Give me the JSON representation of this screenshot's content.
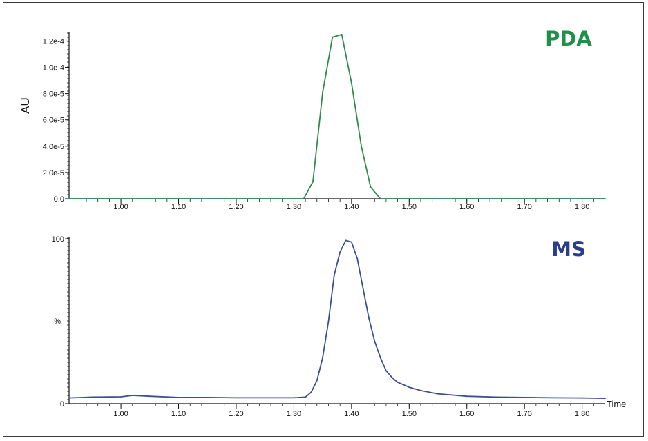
{
  "chart_data": [
    {
      "type": "line",
      "panel_label": "PDA",
      "ylabel": "AU",
      "xlabel": "",
      "color": "#2e8b4e",
      "label_color": "#1f8f4a",
      "xlim": [
        0.91,
        1.84
      ],
      "ylim": [
        0,
        0.000126
      ],
      "x_ticks": [
        1.0,
        1.1,
        1.2,
        1.3,
        1.4,
        1.5,
        1.6,
        1.7,
        1.8
      ],
      "x_tick_labels": [
        "1.00",
        "1.10",
        "1.20",
        "1.30",
        "1.40",
        "1.50",
        "1.60",
        "1.70",
        "1.80"
      ],
      "y_ticks": [
        0,
        2e-05,
        4e-05,
        6e-05,
        8e-05,
        0.0001,
        0.00012
      ],
      "y_tick_labels": [
        "0.0",
        "2.0e-5",
        "4.0e-5",
        "6.0e-5",
        "8.0e-5",
        "1.0e-4",
        "1.2e-4"
      ],
      "series": [
        {
          "x": [
            0.91,
            1.317,
            1.333,
            1.35,
            1.367,
            1.383,
            1.4,
            1.417,
            1.433,
            1.45,
            1.84
          ],
          "y": [
            0,
            0,
            1.3e-05,
            8.1e-05,
            0.000123,
            0.000125,
            8.8e-05,
            4e-05,
            9e-06,
            0,
            0
          ]
        }
      ]
    },
    {
      "type": "line",
      "panel_label": "MS",
      "ylabel": "%",
      "xlabel": "Time",
      "color": "#3a4f91",
      "label_color": "#2b3d8c",
      "xlim": [
        0.91,
        1.84
      ],
      "ylim": [
        0,
        100
      ],
      "x_ticks": [
        1.0,
        1.1,
        1.2,
        1.3,
        1.4,
        1.5,
        1.6,
        1.7,
        1.8
      ],
      "x_tick_labels": [
        "1.00",
        "1.10",
        "1.20",
        "1.30",
        "1.40",
        "1.50",
        "1.60",
        "1.70",
        "1.80"
      ],
      "y_ticks": [
        0,
        100
      ],
      "y_tick_labels": [
        "0",
        "100"
      ],
      "series": [
        {
          "x": [
            0.91,
            0.95,
            1.0,
            1.02,
            1.05,
            1.1,
            1.15,
            1.2,
            1.25,
            1.3,
            1.32,
            1.33,
            1.34,
            1.35,
            1.36,
            1.37,
            1.38,
            1.39,
            1.4,
            1.41,
            1.42,
            1.43,
            1.44,
            1.45,
            1.46,
            1.47,
            1.48,
            1.5,
            1.52,
            1.55,
            1.6,
            1.65,
            1.7,
            1.75,
            1.8,
            1.84
          ],
          "y": [
            3.5,
            4.0,
            4.2,
            5.0,
            4.5,
            3.8,
            3.8,
            3.6,
            3.6,
            3.6,
            4.0,
            7.0,
            14,
            28,
            50,
            78,
            92,
            99,
            98,
            88,
            70,
            52,
            38,
            28,
            20,
            16,
            13,
            10,
            8,
            6,
            4.5,
            4.0,
            3.8,
            3.6,
            3.5,
            3.3
          ]
        }
      ]
    }
  ]
}
